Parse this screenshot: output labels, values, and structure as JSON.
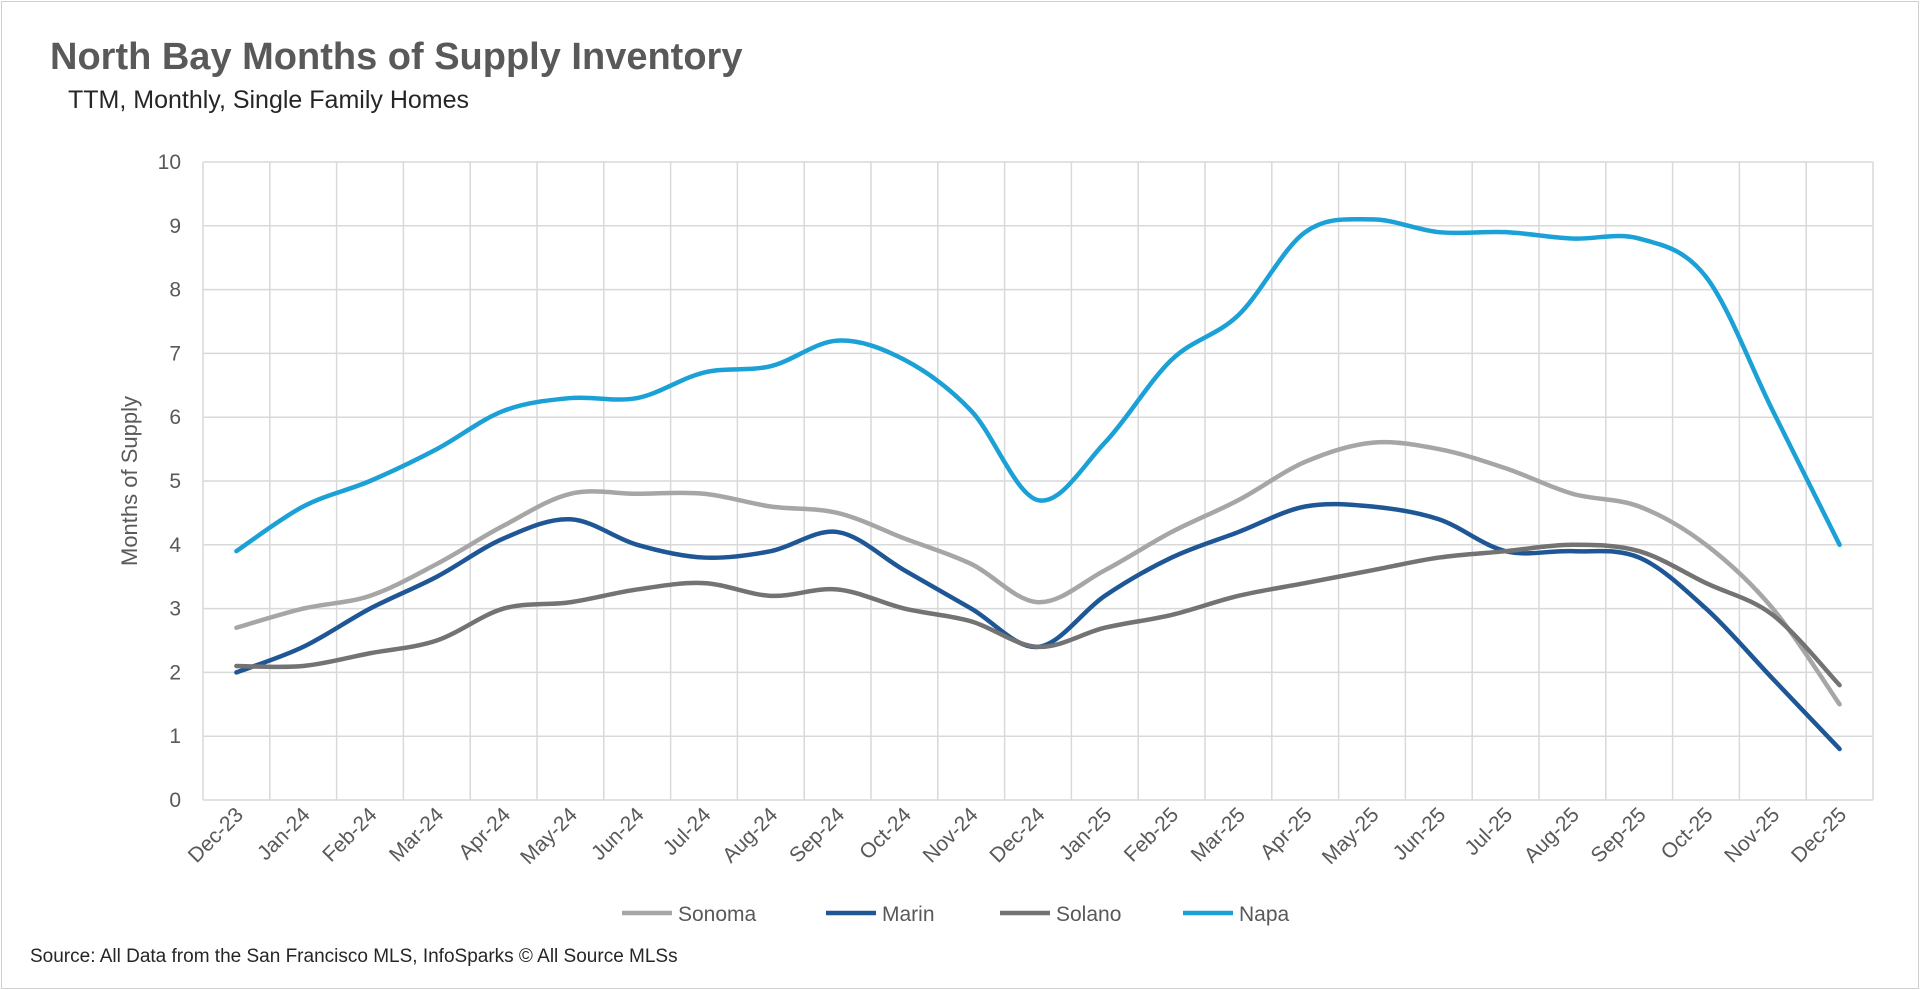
{
  "chart_data": {
    "type": "line",
    "title": "North Bay Months of Supply Inventory",
    "subtitle": "TTM, Monthly, Single Family Homes",
    "xlabel": "",
    "ylabel": "Months of Supply",
    "ylim": [
      0,
      10
    ],
    "yticks": [
      "0",
      "1",
      "2",
      "3",
      "4",
      "5",
      "6",
      "7",
      "8",
      "9",
      "10"
    ],
    "grid": true,
    "legend_position": "bottom",
    "categories": [
      "Dec-23",
      "Jan-24",
      "Feb-24",
      "Mar-24",
      "Apr-24",
      "May-24",
      "Jun-24",
      "Jul-24",
      "Aug-24",
      "Sep-24",
      "Oct-24",
      "Nov-24",
      "Dec-24",
      "Jan-25",
      "Feb-25",
      "Mar-25",
      "Apr-25",
      "May-25",
      "Jun-25",
      "Jul-25",
      "Aug-25",
      "Sep-25",
      "Oct-25",
      "Nov-25",
      "Dec-25"
    ],
    "series": [
      {
        "name": "Sonoma",
        "color": "#a6a6a6",
        "values": [
          2.7,
          3.0,
          3.2,
          3.7,
          4.3,
          4.8,
          4.8,
          4.8,
          4.6,
          4.5,
          4.1,
          3.7,
          3.1,
          3.6,
          4.2,
          4.7,
          5.3,
          5.6,
          5.5,
          5.2,
          4.8,
          4.6,
          4.0,
          3.0,
          1.5
        ]
      },
      {
        "name": "Marin",
        "color": "#1f5796",
        "values": [
          2.0,
          2.4,
          3.0,
          3.5,
          4.1,
          4.4,
          4.0,
          3.8,
          3.9,
          4.2,
          3.6,
          3.0,
          2.4,
          3.2,
          3.8,
          4.2,
          4.6,
          4.6,
          4.4,
          3.9,
          3.9,
          3.8,
          3.0,
          1.9,
          0.8
        ]
      },
      {
        "name": "Solano",
        "color": "#737373",
        "values": [
          2.1,
          2.1,
          2.3,
          2.5,
          3.0,
          3.1,
          3.3,
          3.4,
          3.2,
          3.3,
          3.0,
          2.8,
          2.4,
          2.7,
          2.9,
          3.2,
          3.4,
          3.6,
          3.8,
          3.9,
          4.0,
          3.9,
          3.4,
          2.9,
          1.8
        ]
      },
      {
        "name": "Napa",
        "color": "#1ba1d6",
        "values": [
          3.9,
          4.6,
          5.0,
          5.5,
          6.1,
          6.3,
          6.3,
          6.7,
          6.8,
          7.2,
          6.9,
          6.1,
          4.7,
          5.6,
          6.9,
          7.6,
          8.9,
          9.1,
          8.9,
          8.9,
          8.8,
          8.8,
          8.2,
          6.1,
          4.0
        ]
      }
    ]
  },
  "source": "Source: All Data from the San Francisco MLS, InfoSparks © All Source MLSs"
}
